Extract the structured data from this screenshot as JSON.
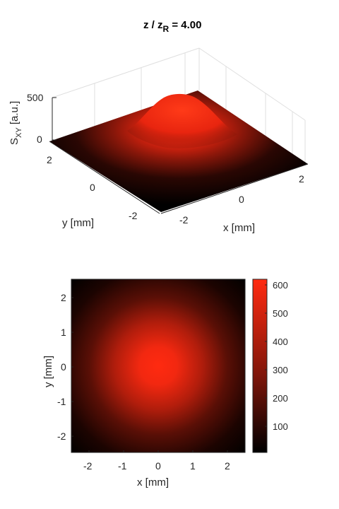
{
  "figure": {
    "title_main": "z / z",
    "title_sub": "R",
    "title_tail": " = 4.00"
  },
  "colors": {
    "background": "#ffffff",
    "axis": "#262626",
    "grid": "#dfdfdf",
    "colormap_low": "#000000",
    "colormap_high": "#ff2a10"
  },
  "chart_data": [
    {
      "type": "surface",
      "title": "z / z_R = 4.00",
      "xlabel": "x  [mm]",
      "ylabel": "y  [mm]",
      "zlabel": "S",
      "zlabel_sub": "XY",
      "zlabel_unit": "  [a.u.]",
      "xlim": [
        -2.5,
        2.5
      ],
      "ylim": [
        -2.5,
        2.5
      ],
      "zlim": [
        0,
        620
      ],
      "x_ticks": [
        "-2",
        "0",
        "2"
      ],
      "y_ticks": [
        "-2",
        "0",
        "2"
      ],
      "z_ticks": [
        "0",
        "500"
      ],
      "peak": 620,
      "beam_radius_mm": 1.5,
      "colormap": "black-to-red",
      "grid": true
    },
    {
      "type": "heatmap",
      "xlabel": "x  [mm]",
      "ylabel": "y  [mm]",
      "xlim": [
        -2.5,
        2.5
      ],
      "ylim": [
        -2.5,
        2.5
      ],
      "x_ticks": [
        "-2",
        "-1",
        "0",
        "1",
        "2"
      ],
      "y_ticks": [
        "2",
        "1",
        "0",
        "-1",
        "-2"
      ],
      "peak": 620,
      "beam_radius_mm": 1.5,
      "colorbar": {
        "ticks": [
          "600",
          "500",
          "400",
          "300",
          "200",
          "100"
        ],
        "range": [
          0,
          620
        ]
      }
    }
  ]
}
